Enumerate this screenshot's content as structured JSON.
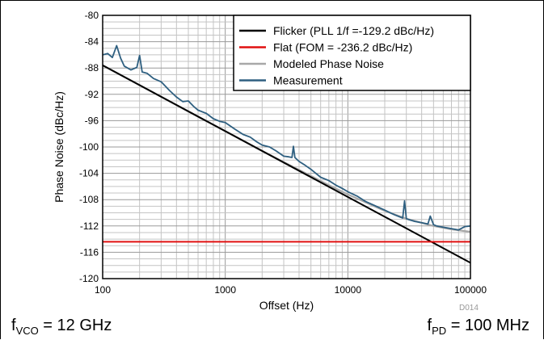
{
  "chart_data": {
    "type": "line",
    "xlabel": "Offset (Hz)",
    "ylabel": "Phase Noise (dBc/Hz)",
    "xscale": "log",
    "xlim": [
      100,
      100000
    ],
    "ylim": [
      -120,
      -80
    ],
    "xticks": [
      100,
      1000,
      10000,
      100000
    ],
    "xtick_labels": [
      "100",
      "1000",
      "10000",
      "100000"
    ],
    "yticks": [
      -80,
      -84,
      -88,
      -92,
      -96,
      -100,
      -104,
      -108,
      -112,
      -116,
      -120
    ],
    "ytick_labels": [
      "-80",
      "-84",
      "-88",
      "-92",
      "-96",
      "-100",
      "-104",
      "-108",
      "-112",
      "-116",
      "-120"
    ],
    "grid": true,
    "legend_position": "top-right",
    "series": [
      {
        "name": "Flicker (PLL 1/f =-129.2 dBc/Hz)",
        "color": "#000000",
        "x": [
          100,
          100000
        ],
        "y": [
          -87.6,
          -117.6
        ]
      },
      {
        "name": "Flat (FOM = -236.2 dBc/Hz)",
        "color": "#e01010",
        "x": [
          100,
          100000
        ],
        "y": [
          -114.4,
          -114.4
        ]
      },
      {
        "name": "Modeled Phase Noise",
        "color": "#a8a8a8",
        "x": [
          100,
          200,
          500,
          1000,
          2000,
          3000,
          5000,
          7000,
          10000,
          20000,
          30000,
          50000,
          70000,
          100000
        ],
        "y": [
          -87.6,
          -90.6,
          -94.6,
          -97.6,
          -100.6,
          -102.3,
          -104.4,
          -105.8,
          -107.2,
          -109.7,
          -110.9,
          -112.0,
          -112.5,
          -112.9
        ]
      },
      {
        "name": "Measurement",
        "color": "#2e5f80",
        "x": [
          100,
          110,
          120,
          130,
          140,
          150,
          170,
          190,
          200,
          210,
          230,
          260,
          300,
          350,
          400,
          450,
          500,
          550,
          600,
          700,
          800,
          900,
          1000,
          1200,
          1400,
          1600,
          1800,
          2000,
          2300,
          2600,
          3000,
          3300,
          3500,
          3600,
          3700,
          4000,
          4500,
          5000,
          6000,
          7000,
          8000,
          9000,
          10000,
          12000,
          14000,
          17000,
          20000,
          24000,
          28000,
          29000,
          30000,
          31000,
          35000,
          40000,
          45000,
          47000,
          50000,
          53000,
          60000,
          70000,
          80000,
          90000,
          100000
        ],
        "y": [
          -86.0,
          -85.8,
          -86.4,
          -84.6,
          -86.5,
          -87.7,
          -88.3,
          -87.9,
          -86.1,
          -88.6,
          -88.8,
          -89.6,
          -90.1,
          -91.4,
          -92.4,
          -93.1,
          -93.0,
          -93.8,
          -94.4,
          -94.9,
          -95.7,
          -96.1,
          -96.3,
          -97.3,
          -98.1,
          -98.5,
          -99.2,
          -99.7,
          -100.0,
          -100.6,
          -101.4,
          -101.5,
          -101.6,
          -99.9,
          -101.6,
          -102.2,
          -102.8,
          -103.4,
          -104.6,
          -105.1,
          -105.8,
          -106.3,
          -106.8,
          -107.5,
          -108.3,
          -109.0,
          -109.6,
          -110.3,
          -110.8,
          -108.2,
          -110.9,
          -111.0,
          -111.3,
          -111.5,
          -111.7,
          -110.5,
          -111.8,
          -112.0,
          -112.2,
          -112.4,
          -112.6,
          -112.1,
          -112.0
        ]
      }
    ]
  },
  "watermark": "D014",
  "footnotes": {
    "left_main": "f",
    "left_sub": "VCO",
    "left_rest": " = 12 GHz",
    "right_main": "f",
    "right_sub": "PD",
    "right_rest": " = 100 MHz"
  }
}
